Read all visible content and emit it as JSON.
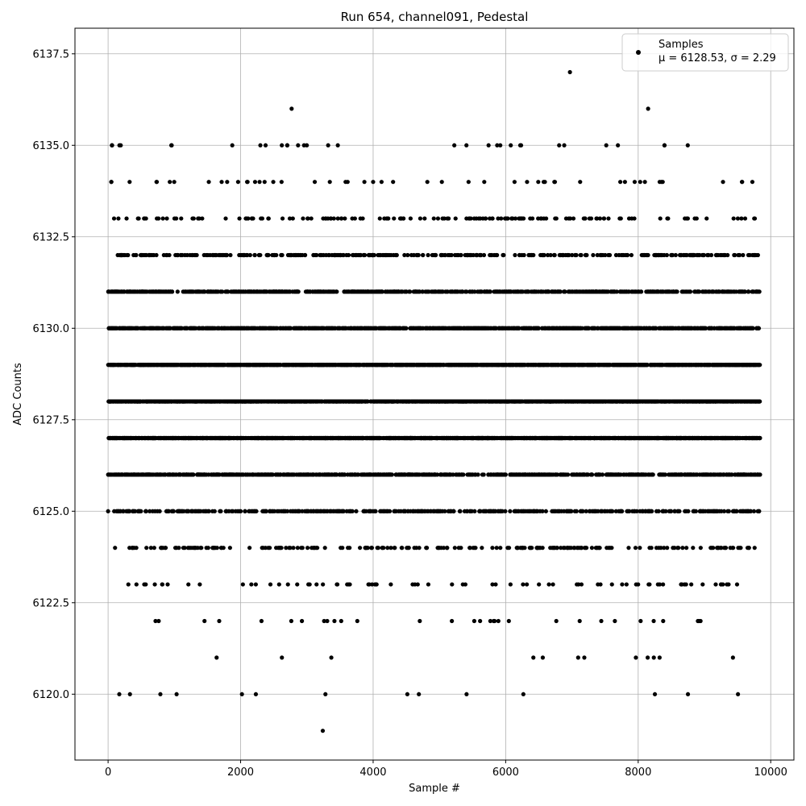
{
  "chart_data": {
    "type": "scatter",
    "title": "Run 654, channel091, Pedestal",
    "xlabel": "Sample #",
    "ylabel": "ADC Counts",
    "xlim": [
      -500,
      10350
    ],
    "ylim": [
      6118.2,
      6138.2
    ],
    "x_ticks": [
      0,
      2000,
      4000,
      6000,
      8000,
      10000
    ],
    "x_tick_labels": [
      "0",
      "2000",
      "4000",
      "6000",
      "8000",
      "10000"
    ],
    "y_ticks": [
      6120.0,
      6122.5,
      6125.0,
      6127.5,
      6130.0,
      6132.5,
      6135.0,
      6137.5
    ],
    "y_tick_labels": [
      "6120.0",
      "6122.5",
      "6125.0",
      "6127.5",
      "6130.0",
      "6132.5",
      "6135.0",
      "6137.5"
    ],
    "grid": true,
    "legend_position": "top-right",
    "marker_color": "#000000",
    "series": [
      {
        "name": "Samples",
        "stats_label": "μ = 6128.53, σ = 2.29",
        "x_range": [
          0,
          9840
        ],
        "distribution": {
          "6126": 0.09,
          "6127": 0.19,
          "6128": 0.21,
          "6129": 0.19,
          "6130": 0.13,
          "6131": 0.08,
          "6125": 0.05,
          "6132": 0.04,
          "6124": 0.02,
          "6133": 0.015,
          "6123": 0.008,
          "6134": 0.006,
          "6135": 0.004,
          "6122": 0.003,
          "6121": 0.001,
          "6120": 0.0007
        },
        "sample_count": 9840,
        "outliers": [
          {
            "x": 3240,
            "y": 6119
          },
          {
            "x": 330,
            "y": 6120
          },
          {
            "x": 2020,
            "y": 6120
          },
          {
            "x": 2230,
            "y": 6120
          },
          {
            "x": 3280,
            "y": 6120
          },
          {
            "x": 4690,
            "y": 6120
          },
          {
            "x": 5410,
            "y": 6120
          },
          {
            "x": 2770,
            "y": 6136
          },
          {
            "x": 8150,
            "y": 6136
          },
          {
            "x": 6970,
            "y": 6137
          }
        ]
      }
    ]
  }
}
